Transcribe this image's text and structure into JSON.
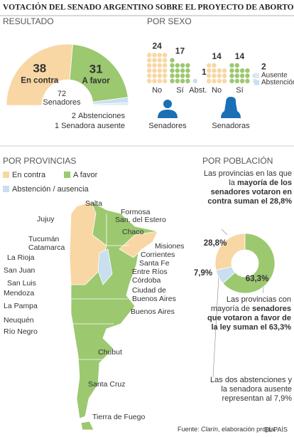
{
  "header": {
    "title": "VOTACIÓN DEL SENADO ARGENTINO SOBRE EL PROYECTO DE ABORTO LEGAL"
  },
  "chart_data": [
    {
      "type": "half-donut",
      "title": "RESULTADO",
      "categories": [
        "En contra",
        "A favor",
        "Abstenciones",
        "Senadora ausente"
      ],
      "values": [
        38,
        31,
        2,
        1
      ],
      "colors": [
        "#f8d7a4",
        "#9cc870",
        "#c9dff0",
        "#dde9f3"
      ],
      "total": 72,
      "total_label": "Senadores"
    },
    {
      "type": "dot-grid",
      "title": "POR SEXO",
      "groups": [
        {
          "name": "Senadores",
          "categories": [
            "No",
            "Sí",
            "Abst."
          ],
          "values": [
            24,
            17,
            1
          ],
          "colors": [
            "#f8d7a4",
            "#9cc870",
            "#c9dff0"
          ]
        },
        {
          "name": "Senadoras",
          "categories": [
            "No",
            "Sí",
            null
          ],
          "values": [
            14,
            14,
            2
          ],
          "colors": [
            "#f8d7a4",
            "#9cc870",
            null
          ]
        }
      ],
      "legend": [
        {
          "name": "Ausente",
          "color": "#dde9f3"
        },
        {
          "name": "Abstención",
          "color": "#c9dff0"
        }
      ]
    },
    {
      "type": "donut",
      "title": "POR POBLACIÓN",
      "values": [
        28.8,
        63.3,
        7.9
      ],
      "value_labels": [
        "28,8%",
        "63,3%",
        "7,9%"
      ],
      "colors": [
        "#f8d7a4",
        "#9cc870",
        "#c9dff0"
      ],
      "notes": [
        [
          {
            "text": "Las provincias en las que la ",
            "style": "normal"
          },
          {
            "text": "mayoría de los senadores votaron en contra suman el 28,8%",
            "style": "bold"
          }
        ],
        [
          {
            "text": "Las provincias con mayoría de ",
            "style": "normal"
          },
          {
            "text": "senadores que votaron a favor de la ley suman el 63,3%",
            "style": "bold"
          }
        ],
        [
          {
            "text": "Las dos abstenciones y la senadora ausente representan al 7,9%",
            "style": "normal"
          }
        ]
      ]
    }
  ],
  "map": {
    "title": "POR PROVINCIAS",
    "legend": [
      {
        "name": "En contra",
        "color": "#f8d7a4"
      },
      {
        "name": "A favor",
        "color": "#9cc870"
      },
      {
        "name": "Abstención / ausencia",
        "color": "#c9dff0"
      }
    ],
    "labels": [
      "Salta",
      "Formosa",
      "San. del Estero",
      "Jujuy",
      "Chaco",
      "Tucumán",
      "Catamarca",
      "Misiones",
      "La Rioja",
      "Corrientes",
      "Santa Fe",
      "San Juan",
      "Entre Ríos",
      "San Luis",
      "Córdoba",
      "Mendoza",
      "Ciudad de Buenos Aires",
      "La Pampa",
      "Buenos Aires",
      "Neuquén",
      "Río Negro",
      "Chubut",
      "Santa Cruz",
      "Tierra de Fuego"
    ]
  },
  "footer": {
    "source": [
      {
        "text": "Fuente: ",
        "style": "normal"
      },
      {
        "text": "Clarín",
        "style": "italic"
      },
      {
        "text": ", elaboración propia.",
        "style": "normal"
      }
    ],
    "brand": "EL PAÍS"
  }
}
